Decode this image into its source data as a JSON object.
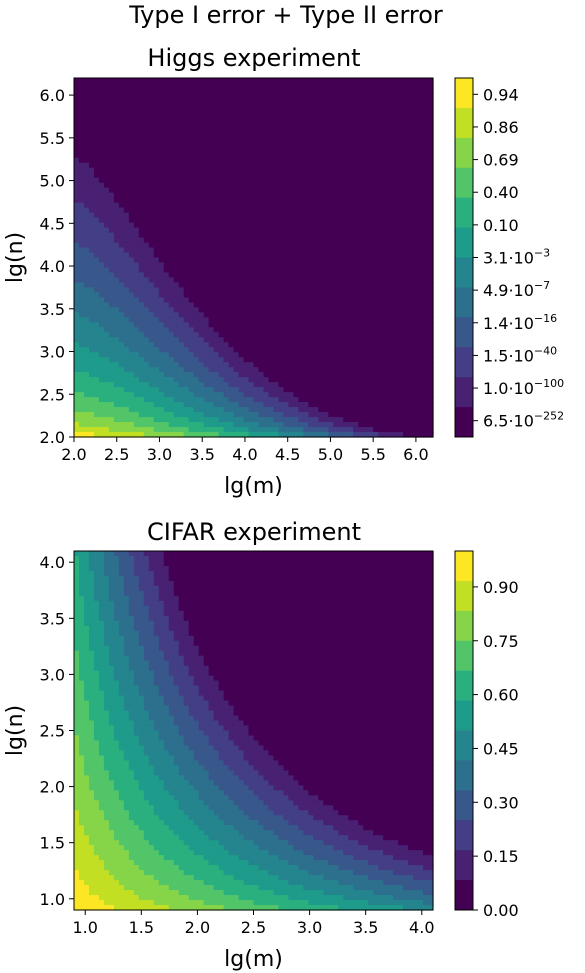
{
  "suptitle": "Type I error + Type II error",
  "colors": [
    "#440154",
    "#482173",
    "#433e85",
    "#38588c",
    "#2d708e",
    "#25858e",
    "#1e9b8a",
    "#2ab07f",
    "#52c569",
    "#86d549",
    "#c2df23",
    "#fde725"
  ],
  "chart_data": [
    {
      "type": "heatmap",
      "subtype": "filled-contour",
      "title": "Higgs experiment",
      "xlabel": "lg(m)",
      "ylabel": "lg(n)",
      "xlim": [
        2.0,
        6.2
      ],
      "ylim": [
        2.0,
        6.2
      ],
      "x_ticks": [
        "2.0",
        "2.5",
        "3.0",
        "3.5",
        "4.0",
        "4.5",
        "5.0",
        "5.5",
        "6.0"
      ],
      "y_ticks": [
        "2.0",
        "2.5",
        "3.0",
        "3.5",
        "4.0",
        "4.5",
        "5.0",
        "5.5",
        "6.0"
      ],
      "grid": false,
      "colorbar_ticks": [
        {
          "mant": "0.94",
          "exp": ""
        },
        {
          "mant": "0.86",
          "exp": ""
        },
        {
          "mant": "0.69",
          "exp": ""
        },
        {
          "mant": "0.40",
          "exp": ""
        },
        {
          "mant": "0.10",
          "exp": ""
        },
        {
          "mant": "3.1·10",
          "exp": "−3"
        },
        {
          "mant": "4.9·10",
          "exp": "−7"
        },
        {
          "mant": "1.4·10",
          "exp": "−16"
        },
        {
          "mant": "1.5·10",
          "exp": "−40"
        },
        {
          "mant": "1.0·10",
          "exp": "−100"
        },
        {
          "mant": "6.5·10",
          "exp": "−252"
        }
      ]
    },
    {
      "type": "heatmap",
      "subtype": "filled-contour",
      "title": "CIFAR experiment",
      "xlabel": "lg(m)",
      "ylabel": "lg(n)",
      "xlim": [
        0.9,
        4.1
      ],
      "ylim": [
        0.9,
        4.1
      ],
      "x_ticks": [
        "1.0",
        "1.5",
        "2.0",
        "2.5",
        "3.0",
        "3.5",
        "4.0"
      ],
      "y_ticks": [
        "1.0",
        "1.5",
        "2.0",
        "2.5",
        "3.0",
        "3.5",
        "4.0"
      ],
      "grid": false,
      "colorbar_ticks": [
        {
          "mant": "0.00",
          "exp": ""
        },
        {
          "mant": "0.15",
          "exp": ""
        },
        {
          "mant": "0.30",
          "exp": ""
        },
        {
          "mant": "0.45",
          "exp": ""
        },
        {
          "mant": "0.60",
          "exp": ""
        },
        {
          "mant": "0.75",
          "exp": ""
        },
        {
          "mant": "0.90",
          "exp": ""
        }
      ],
      "colorbar_range": [
        0.0,
        1.0
      ]
    }
  ]
}
